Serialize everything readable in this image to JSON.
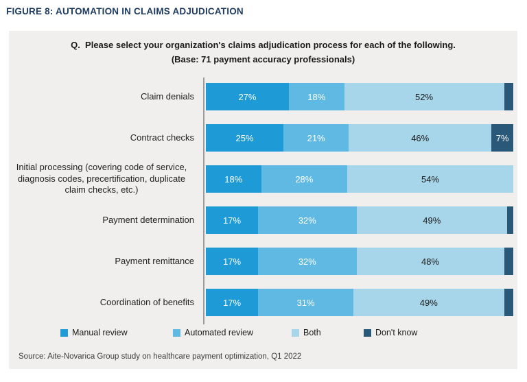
{
  "header": {
    "title": "FIGURE 8: AUTOMATION IN CLAIMS ADJUDICATION"
  },
  "question": {
    "line1": "Q.  Please select your organization's claims adjudication process for each of the following.",
    "line2": "(Base: 71 payment accuracy professionals)"
  },
  "chart_data": {
    "type": "bar",
    "orientation": "horizontal",
    "stacked": true,
    "unit": "percent",
    "xlim": [
      0,
      100
    ],
    "title": "Q. Please select your organization's claims adjudication process for each of the following. (Base: 71 payment accuracy professionals)",
    "categories": [
      "Claim denials",
      "Contract checks",
      "Initial processing (covering code of service, diagnosis codes, precertification, duplicate claim checks, etc.)",
      "Payment determination",
      "Payment remittance",
      "Coordination of benefits"
    ],
    "series": [
      {
        "key": "manual-review",
        "name": "Manual review",
        "color": "#1e9ad6",
        "label_color": "#ffffff",
        "values": [
          27,
          25,
          18,
          17,
          17,
          17
        ],
        "labels": [
          "27%",
          "25%",
          "18%",
          "17%",
          "17%",
          "17%"
        ]
      },
      {
        "key": "automated-review",
        "name": "Automated review",
        "color": "#5fb9e3",
        "label_color": "#ffffff",
        "values": [
          18,
          21,
          28,
          32,
          32,
          31
        ],
        "labels": [
          "18%",
          "21%",
          "28%",
          "32%",
          "32%",
          "31%"
        ]
      },
      {
        "key": "both",
        "name": "Both",
        "color": "#a7d5ea",
        "label_color": "#1a1a1a",
        "values": [
          52,
          46,
          54,
          49,
          48,
          49
        ],
        "labels": [
          "52%",
          "46%",
          "54%",
          "49%",
          "48%",
          "49%"
        ]
      },
      {
        "key": "dont-know",
        "name": "Don't know",
        "color": "#2a5878",
        "label_color": "#ffffff",
        "values": [
          3,
          7,
          0,
          2,
          3,
          3
        ],
        "labels": [
          "",
          "7%",
          "",
          "",
          "",
          ""
        ]
      }
    ],
    "legend_position": "bottom",
    "grid": false
  },
  "legend": {
    "items": [
      {
        "label": "Manual review",
        "color": "#1e9ad6"
      },
      {
        "label": "Automated review",
        "color": "#5fb9e3"
      },
      {
        "label": "Both",
        "color": "#a7d5ea"
      },
      {
        "label": "Don't know",
        "color": "#2a5878"
      }
    ]
  },
  "source": "Source: Aite-Novarica Group study on healthcare payment optimization, Q1 2022",
  "colors": {
    "panel_background": "#f0efed",
    "title_text": "#1e3a5f",
    "axis_line": "#9c9c9c"
  }
}
